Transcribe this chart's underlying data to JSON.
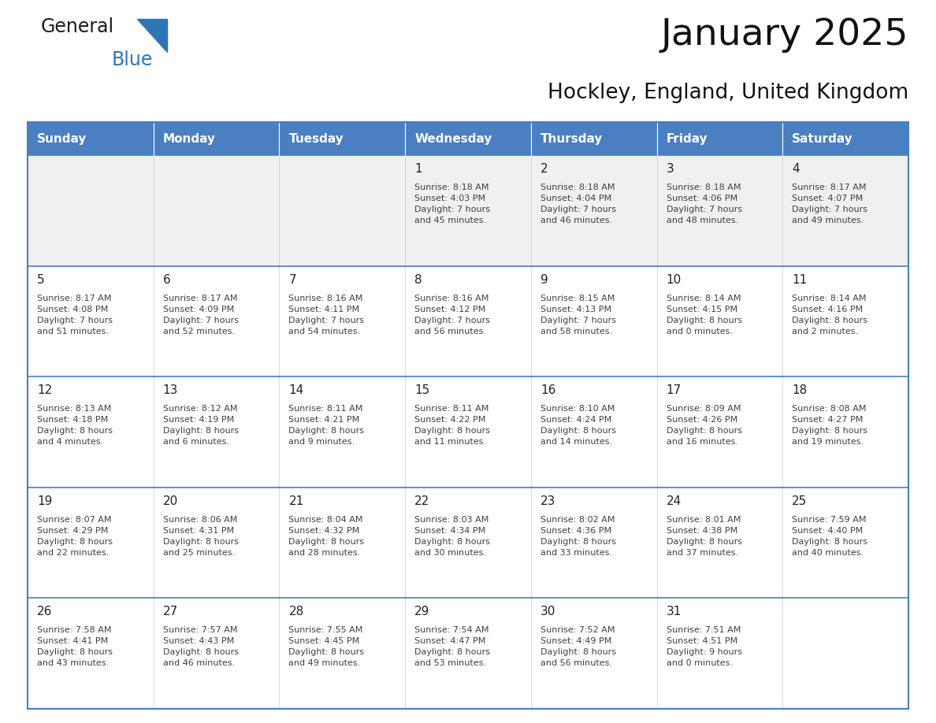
{
  "title": "January 2025",
  "subtitle": "Hockley, England, United Kingdom",
  "days_of_week": [
    "Sunday",
    "Monday",
    "Tuesday",
    "Wednesday",
    "Thursday",
    "Friday",
    "Saturday"
  ],
  "header_bg": "#4a7fc1",
  "header_text": "#FFFFFF",
  "cell_bg_light": "#FFFFFF",
  "cell_bg_gray": "#F0F0F0",
  "border_color": "#4a7fc1",
  "text_color": "#404040",
  "day_num_color": "#222222",
  "title_color": "#111111",
  "subtitle_color": "#111111",
  "calendar_data": [
    [
      {
        "day": null,
        "info": null
      },
      {
        "day": null,
        "info": null
      },
      {
        "day": null,
        "info": null
      },
      {
        "day": 1,
        "info": "Sunrise: 8:18 AM\nSunset: 4:03 PM\nDaylight: 7 hours\nand 45 minutes."
      },
      {
        "day": 2,
        "info": "Sunrise: 8:18 AM\nSunset: 4:04 PM\nDaylight: 7 hours\nand 46 minutes."
      },
      {
        "day": 3,
        "info": "Sunrise: 8:18 AM\nSunset: 4:06 PM\nDaylight: 7 hours\nand 48 minutes."
      },
      {
        "day": 4,
        "info": "Sunrise: 8:17 AM\nSunset: 4:07 PM\nDaylight: 7 hours\nand 49 minutes."
      }
    ],
    [
      {
        "day": 5,
        "info": "Sunrise: 8:17 AM\nSunset: 4:08 PM\nDaylight: 7 hours\nand 51 minutes."
      },
      {
        "day": 6,
        "info": "Sunrise: 8:17 AM\nSunset: 4:09 PM\nDaylight: 7 hours\nand 52 minutes."
      },
      {
        "day": 7,
        "info": "Sunrise: 8:16 AM\nSunset: 4:11 PM\nDaylight: 7 hours\nand 54 minutes."
      },
      {
        "day": 8,
        "info": "Sunrise: 8:16 AM\nSunset: 4:12 PM\nDaylight: 7 hours\nand 56 minutes."
      },
      {
        "day": 9,
        "info": "Sunrise: 8:15 AM\nSunset: 4:13 PM\nDaylight: 7 hours\nand 58 minutes."
      },
      {
        "day": 10,
        "info": "Sunrise: 8:14 AM\nSunset: 4:15 PM\nDaylight: 8 hours\nand 0 minutes."
      },
      {
        "day": 11,
        "info": "Sunrise: 8:14 AM\nSunset: 4:16 PM\nDaylight: 8 hours\nand 2 minutes."
      }
    ],
    [
      {
        "day": 12,
        "info": "Sunrise: 8:13 AM\nSunset: 4:18 PM\nDaylight: 8 hours\nand 4 minutes."
      },
      {
        "day": 13,
        "info": "Sunrise: 8:12 AM\nSunset: 4:19 PM\nDaylight: 8 hours\nand 6 minutes."
      },
      {
        "day": 14,
        "info": "Sunrise: 8:11 AM\nSunset: 4:21 PM\nDaylight: 8 hours\nand 9 minutes."
      },
      {
        "day": 15,
        "info": "Sunrise: 8:11 AM\nSunset: 4:22 PM\nDaylight: 8 hours\nand 11 minutes."
      },
      {
        "day": 16,
        "info": "Sunrise: 8:10 AM\nSunset: 4:24 PM\nDaylight: 8 hours\nand 14 minutes."
      },
      {
        "day": 17,
        "info": "Sunrise: 8:09 AM\nSunset: 4:26 PM\nDaylight: 8 hours\nand 16 minutes."
      },
      {
        "day": 18,
        "info": "Sunrise: 8:08 AM\nSunset: 4:27 PM\nDaylight: 8 hours\nand 19 minutes."
      }
    ],
    [
      {
        "day": 19,
        "info": "Sunrise: 8:07 AM\nSunset: 4:29 PM\nDaylight: 8 hours\nand 22 minutes."
      },
      {
        "day": 20,
        "info": "Sunrise: 8:06 AM\nSunset: 4:31 PM\nDaylight: 8 hours\nand 25 minutes."
      },
      {
        "day": 21,
        "info": "Sunrise: 8:04 AM\nSunset: 4:32 PM\nDaylight: 8 hours\nand 28 minutes."
      },
      {
        "day": 22,
        "info": "Sunrise: 8:03 AM\nSunset: 4:34 PM\nDaylight: 8 hours\nand 30 minutes."
      },
      {
        "day": 23,
        "info": "Sunrise: 8:02 AM\nSunset: 4:36 PM\nDaylight: 8 hours\nand 33 minutes."
      },
      {
        "day": 24,
        "info": "Sunrise: 8:01 AM\nSunset: 4:38 PM\nDaylight: 8 hours\nand 37 minutes."
      },
      {
        "day": 25,
        "info": "Sunrise: 7:59 AM\nSunset: 4:40 PM\nDaylight: 8 hours\nand 40 minutes."
      }
    ],
    [
      {
        "day": 26,
        "info": "Sunrise: 7:58 AM\nSunset: 4:41 PM\nDaylight: 8 hours\nand 43 minutes."
      },
      {
        "day": 27,
        "info": "Sunrise: 7:57 AM\nSunset: 4:43 PM\nDaylight: 8 hours\nand 46 minutes."
      },
      {
        "day": 28,
        "info": "Sunrise: 7:55 AM\nSunset: 4:45 PM\nDaylight: 8 hours\nand 49 minutes."
      },
      {
        "day": 29,
        "info": "Sunrise: 7:54 AM\nSunset: 4:47 PM\nDaylight: 8 hours\nand 53 minutes."
      },
      {
        "day": 30,
        "info": "Sunrise: 7:52 AM\nSunset: 4:49 PM\nDaylight: 8 hours\nand 56 minutes."
      },
      {
        "day": 31,
        "info": "Sunrise: 7:51 AM\nSunset: 4:51 PM\nDaylight: 9 hours\nand 0 minutes."
      },
      {
        "day": null,
        "info": null
      }
    ]
  ]
}
